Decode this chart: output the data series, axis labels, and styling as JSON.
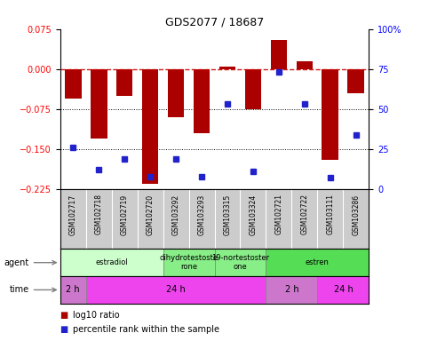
{
  "title": "GDS2077 / 18687",
  "samples": [
    "GSM102717",
    "GSM102718",
    "GSM102719",
    "GSM102720",
    "GSM103292",
    "GSM103293",
    "GSM103315",
    "GSM103324",
    "GSM102721",
    "GSM102722",
    "GSM103111",
    "GSM103286"
  ],
  "log10_ratio": [
    -0.055,
    -0.13,
    -0.05,
    -0.215,
    -0.09,
    -0.12,
    0.005,
    -0.075,
    0.055,
    0.015,
    -0.17,
    -0.045
  ],
  "percentile_rank": [
    26,
    12,
    19,
    8,
    19,
    8,
    53,
    11,
    73,
    53,
    7,
    34
  ],
  "ylim_left": [
    -0.225,
    0.075
  ],
  "ylim_right": [
    0,
    100
  ],
  "yticks_left": [
    -0.225,
    -0.15,
    -0.075,
    0,
    0.075
  ],
  "yticks_right": [
    0,
    25,
    50,
    75,
    100
  ],
  "hlines": [
    -0.075,
    -0.15
  ],
  "bar_color": "#aa0000",
  "dot_color": "#2222cc",
  "dashed_line_color": "#cc0000",
  "agent_groups": [
    {
      "label": "estradiol",
      "start": 0,
      "end": 4,
      "color": "#ccffcc"
    },
    {
      "label": "dihydrotestoste\nrone",
      "start": 4,
      "end": 6,
      "color": "#88ee88"
    },
    {
      "label": "19-nortestoster\none",
      "start": 6,
      "end": 8,
      "color": "#88ee88"
    },
    {
      "label": "estren",
      "start": 8,
      "end": 12,
      "color": "#55dd55"
    }
  ],
  "time_groups": [
    {
      "label": "2 h",
      "start": 0,
      "end": 1,
      "color": "#cc77cc"
    },
    {
      "label": "24 h",
      "start": 1,
      "end": 8,
      "color": "#ee44ee"
    },
    {
      "label": "2 h",
      "start": 8,
      "end": 10,
      "color": "#cc77cc"
    },
    {
      "label": "24 h",
      "start": 10,
      "end": 12,
      "color": "#ee44ee"
    }
  ],
  "legend_red_label": "log10 ratio",
  "legend_blue_label": "percentile rank within the sample",
  "bar_width": 0.65
}
